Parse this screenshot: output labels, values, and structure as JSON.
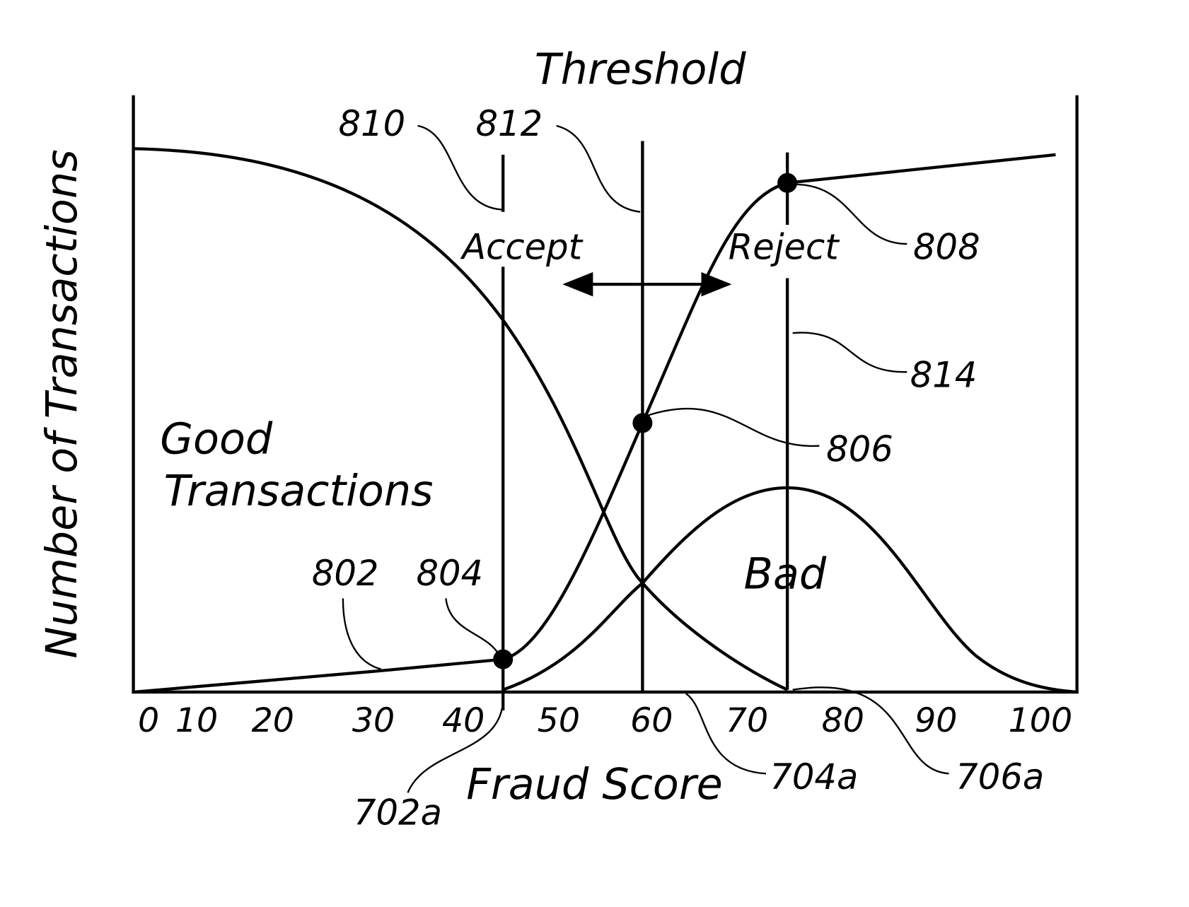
{
  "title": "Threshold",
  "y_axis_label": "Number of Transactions",
  "x_axis_label": "Fraud Score",
  "x_tick_labels": [
    "0",
    "10",
    "20",
    "30",
    "40",
    "50",
    "60",
    "70",
    "80",
    "90",
    "100"
  ],
  "regions": {
    "accept": "Accept",
    "reject": "Reject"
  },
  "curve_labels": {
    "good": [
      "Good",
      "Transactions"
    ],
    "bad": "Bad"
  },
  "reference_numerals": [
    "810",
    "812",
    "808",
    "814",
    "806",
    "802",
    "804",
    "702a",
    "704a",
    "706a"
  ]
}
